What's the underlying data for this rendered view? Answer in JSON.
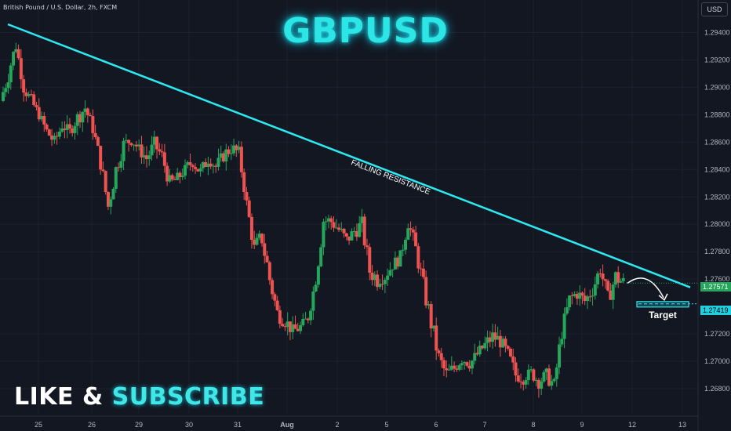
{
  "header": {
    "symbol_label": "British Pound / U.S. Dollar, 2h, FXCM",
    "title": "GBPUSD",
    "currency": "USD"
  },
  "cta": {
    "word1": "LIKE",
    "amp": "&",
    "word2": "SUBSCRIBE"
  },
  "colors": {
    "background": "#131722",
    "bull": "#26a65b",
    "bear": "#ef5350",
    "trendline": "#2ce8f0",
    "grid": "#1c2030",
    "axis_text": "#b2b5be"
  },
  "chart_data": {
    "type": "candlestick",
    "title": "GBPUSD",
    "ylim": [
      1.2672,
      1.295
    ],
    "y_ticks": [
      "1.29400",
      "1.29200",
      "1.29000",
      "1.28800",
      "1.28600",
      "1.28400",
      "1.28200",
      "1.28000",
      "1.27800",
      "1.27600",
      "1.27200",
      "1.27000",
      "1.26800"
    ],
    "x_ticks": [
      "25",
      "26",
      "29",
      "30",
      "31",
      "Aug",
      "2",
      "5",
      "6",
      "7",
      "8",
      "9",
      "12",
      "13"
    ],
    "ohlc_path": [
      [
        1.289,
        0.0015
      ],
      [
        1.291,
        0.0012
      ],
      [
        1.2931,
        0.001
      ],
      [
        1.29,
        0.001
      ],
      [
        1.289,
        0.0008
      ],
      [
        1.288,
        0.0008
      ],
      [
        1.2868,
        0.001
      ],
      [
        1.286,
        0.0008
      ],
      [
        1.2872,
        0.0008
      ],
      [
        1.2868,
        0.001
      ],
      [
        1.2878,
        0.0012
      ],
      [
        1.2885,
        0.001
      ],
      [
        1.287,
        0.0012
      ],
      [
        1.2845,
        0.0014
      ],
      [
        1.2813,
        0.0014
      ],
      [
        1.284,
        0.0012
      ],
      [
        1.2858,
        0.001
      ],
      [
        1.2862,
        0.0008
      ],
      [
        1.2855,
        0.001
      ],
      [
        1.2848,
        0.0012
      ],
      [
        1.2858,
        0.001
      ],
      [
        1.285,
        0.0012
      ],
      [
        1.283,
        0.001
      ],
      [
        1.2833,
        0.0008
      ],
      [
        1.284,
        0.001
      ],
      [
        1.2846,
        0.0012
      ],
      [
        1.2838,
        0.001
      ],
      [
        1.2848,
        0.0008
      ],
      [
        1.2842,
        0.001
      ],
      [
        1.285,
        0.0012
      ],
      [
        1.2856,
        0.001
      ],
      [
        1.2852,
        0.001
      ],
      [
        1.2815,
        0.0012
      ],
      [
        1.2782,
        0.0015
      ],
      [
        1.279,
        0.002
      ],
      [
        1.276,
        0.0014
      ],
      [
        1.2735,
        0.0012
      ],
      [
        1.273,
        0.001
      ],
      [
        1.2722,
        0.001
      ],
      [
        1.2725,
        0.0008
      ],
      [
        1.2732,
        0.001
      ],
      [
        1.276,
        0.0014
      ],
      [
        1.2803,
        0.0012
      ],
      [
        1.2802,
        0.001
      ],
      [
        1.2796,
        0.0012
      ],
      [
        1.2788,
        0.001
      ],
      [
        1.2795,
        0.0012
      ],
      [
        1.28,
        0.0015
      ],
      [
        1.2766,
        0.0014
      ],
      [
        1.276,
        0.001
      ],
      [
        1.2762,
        0.0008
      ],
      [
        1.277,
        0.001
      ],
      [
        1.2776,
        0.0012
      ],
      [
        1.2802,
        0.0012
      ],
      [
        1.2782,
        0.0014
      ],
      [
        1.2755,
        0.0016
      ],
      [
        1.2728,
        0.0015
      ],
      [
        1.2702,
        0.0014
      ],
      [
        1.269,
        0.0012
      ],
      [
        1.2695,
        0.001
      ],
      [
        1.2702,
        0.0008
      ],
      [
        1.2698,
        0.001
      ],
      [
        1.2705,
        0.001
      ],
      [
        1.2712,
        0.0012
      ],
      [
        1.2718,
        0.0012
      ],
      [
        1.2715,
        0.001
      ],
      [
        1.2705,
        0.0012
      ],
      [
        1.269,
        0.001
      ],
      [
        1.2688,
        0.0008
      ],
      [
        1.2692,
        0.001
      ],
      [
        1.2685,
        0.001
      ],
      [
        1.269,
        0.0012
      ],
      [
        1.2682,
        0.0014
      ],
      [
        1.2722,
        0.0012
      ],
      [
        1.2745,
        0.0012
      ],
      [
        1.275,
        0.001
      ],
      [
        1.2744,
        0.001
      ],
      [
        1.2752,
        0.0012
      ],
      [
        1.2768,
        0.0014
      ],
      [
        1.2745,
        0.0012
      ],
      [
        1.2762,
        0.0014
      ],
      [
        1.2757,
        0.001
      ]
    ],
    "trendline": {
      "label": "FALLING RESISTANCE",
      "from": [
        "25",
        1.2946
      ],
      "to": [
        "13",
        1.2754
      ]
    },
    "annotations": [
      {
        "text": "Target",
        "level": 1.27419
      }
    ],
    "price_labels": {
      "current": "1.27571",
      "target": "1.27419"
    }
  }
}
